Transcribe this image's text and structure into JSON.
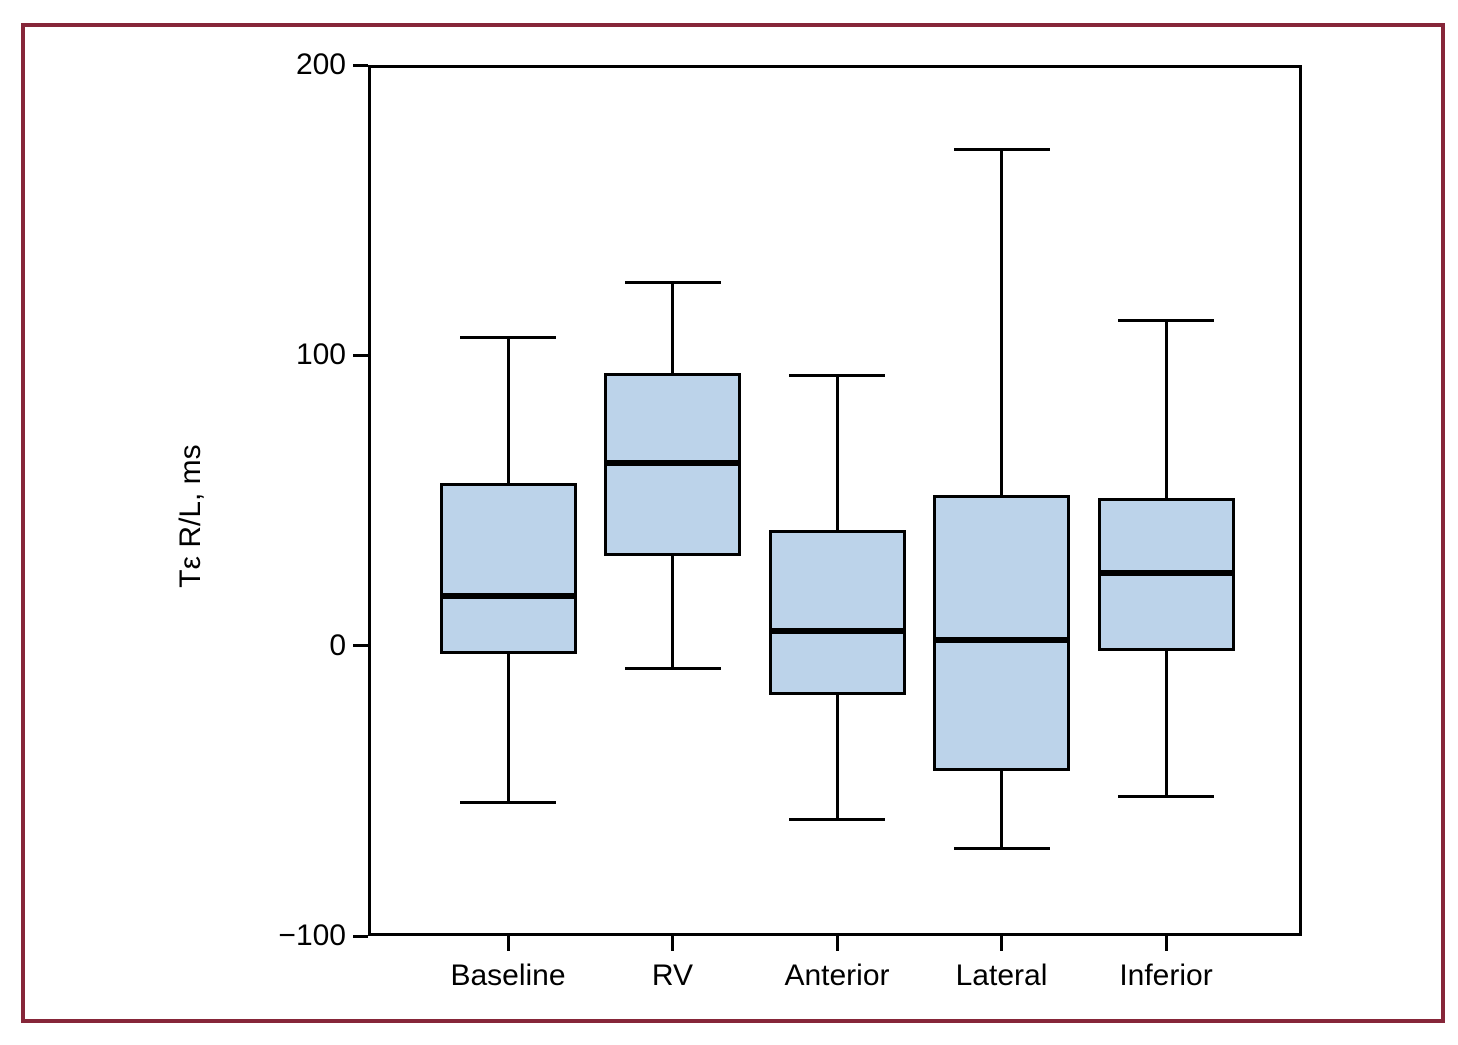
{
  "figure": {
    "outer_border_color": "#862639",
    "background_color": "#ffffff"
  },
  "chart_data": {
    "type": "box",
    "title": "",
    "xlabel": "",
    "ylabel": "Tε R/L, ms",
    "ylim": [
      -100,
      200
    ],
    "yticks": [
      200,
      100,
      0,
      -100
    ],
    "ytick_labels": [
      "200",
      "100",
      "0",
      "−100"
    ],
    "grid": false,
    "legend": "none",
    "categories": [
      "Baseline",
      "RV",
      "Anterior",
      "Lateral",
      "Inferior"
    ],
    "series": [
      {
        "name": "Baseline",
        "whisker_low": -54,
        "q1": -3,
        "median": 17,
        "q3": 56,
        "whisker_high": 106
      },
      {
        "name": "RV",
        "whisker_low": -8,
        "q1": 31,
        "median": 63,
        "q3": 94,
        "whisker_high": 125
      },
      {
        "name": "Anterior",
        "whisker_low": -60,
        "q1": -17,
        "median": 5,
        "q3": 40,
        "whisker_high": 93
      },
      {
        "name": "Lateral",
        "whisker_low": -70,
        "q1": -43,
        "median": 2,
        "q3": 52,
        "whisker_high": 171
      },
      {
        "name": "Inferior",
        "whisker_low": -52,
        "q1": -2,
        "median": 25,
        "q3": 51,
        "whisker_high": 112
      }
    ],
    "colors": {
      "box_fill": "#bcd3ea",
      "box_border": "#000000",
      "median": "#000000",
      "whisker": "#000000",
      "axis": "#000000"
    }
  }
}
